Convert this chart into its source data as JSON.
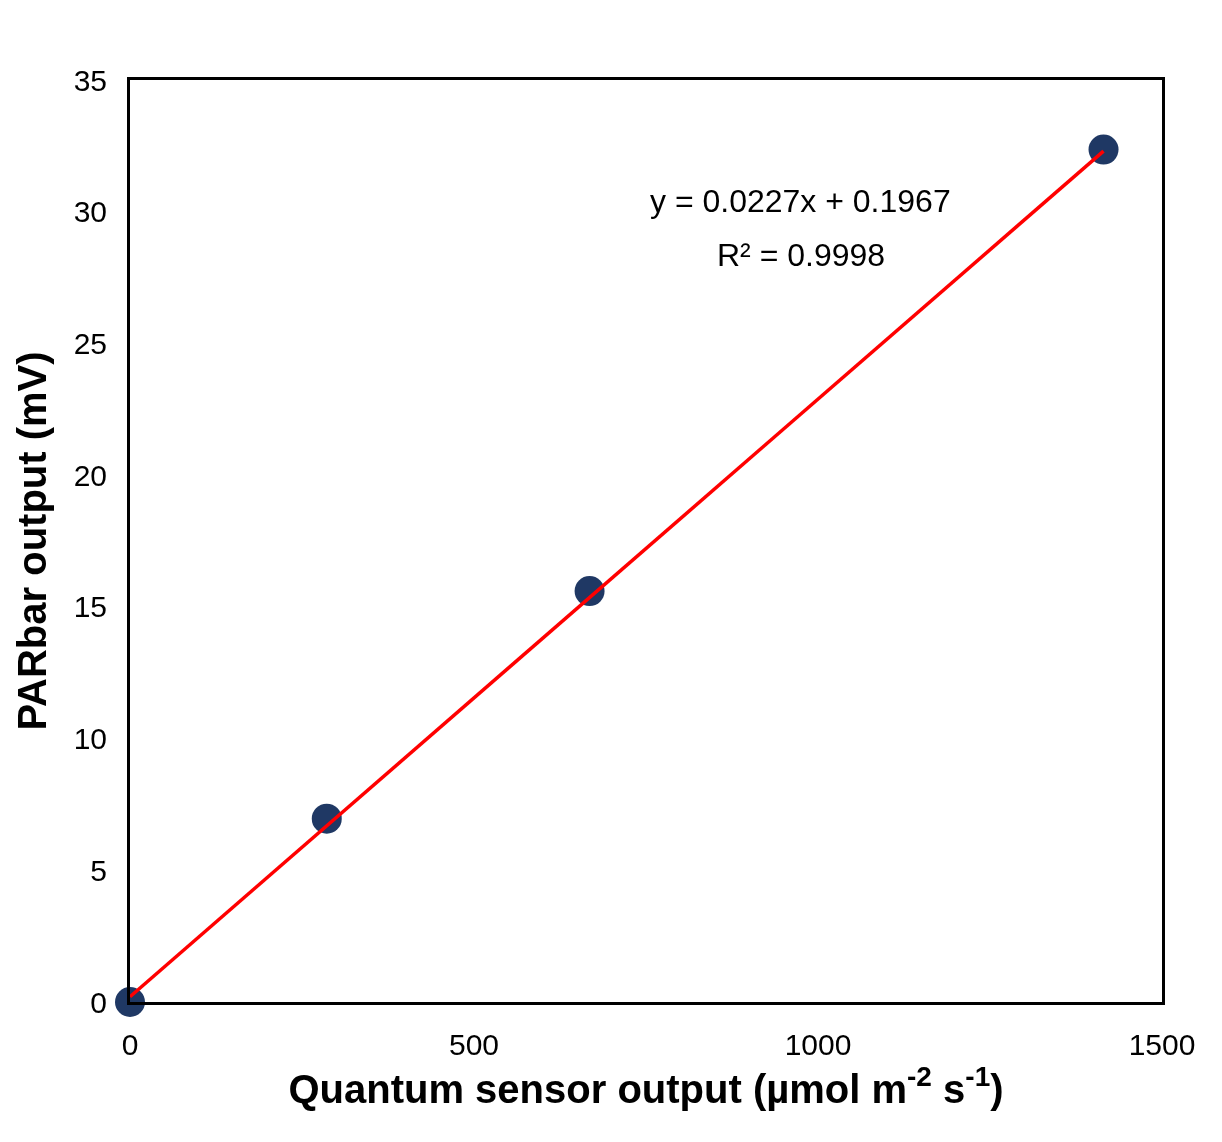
{
  "chart_data": {
    "type": "scatter",
    "xlabel": "Quantum sensor output (µmol m$^{-2}$ s$^{-1}$)",
    "ylabel": "PARbar output (mV)",
    "xlim": [
      0,
      1500
    ],
    "xticks": [
      0,
      500,
      1000,
      1500
    ],
    "ylim": [
      0,
      35
    ],
    "yticks": [
      0,
      5,
      10,
      15,
      20,
      25,
      30,
      35
    ],
    "series": [
      {
        "color": "#1f3864",
        "marker": "circle",
        "x": [
          0,
          286,
          668,
          1415
        ],
        "values": [
          0,
          6.96,
          15.6,
          32.36
        ]
      },
      {
        "type": "line",
        "color": "#ff0000",
        "marker": "none",
        "line_style": "solid",
        "x": [
          0,
          1415
        ],
        "values": [
          0.2,
          32.3
        ]
      }
    ],
    "annotations": [
      "y = 0.0227x + 0.1967",
      "R² = 0.9998"
    ]
  }
}
